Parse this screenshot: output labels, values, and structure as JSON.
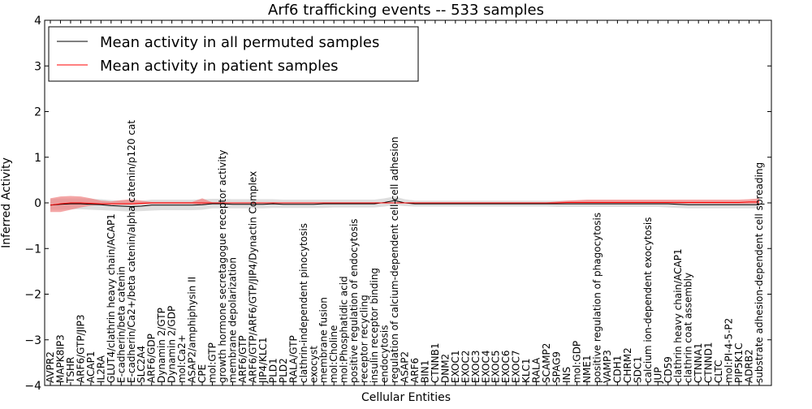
{
  "chart_data": {
    "type": "line",
    "title": "Arf6 trafficking events -- 533 samples",
    "xlabel": "Cellular Entities",
    "ylabel": "Inferred Activity",
    "ylim": [
      -4,
      4
    ],
    "yticks": [
      -4,
      -3,
      -2,
      -1,
      0,
      1,
      2,
      3,
      4
    ],
    "ytick_labels": [
      "−4",
      "−3",
      "−2",
      "−1",
      "0",
      "1",
      "2",
      "3",
      "4"
    ],
    "grid": false,
    "legend_position": "top-left",
    "categories": [
      "AVPR2",
      "MAPK8IP3",
      "TSHR",
      "ARF6/GTP/JIP3",
      "ACAP1",
      "IL2RA",
      "GLUT4/clathrin heavy chain/ACAP1",
      "E-cadherin/beta catenin",
      "E-cadherin/Ca2+/beta catenin/alpha catenin/p120 cat",
      "SLC2A4",
      "ARF6/GDP",
      "Dynamin 2/GTP",
      "Dynamin 2/GDP",
      "mol:Ca2+",
      "ASAP2/amphiphysin II",
      "CPE",
      "mol:GTP",
      "growth hormone secretagogue receptor activity",
      "membrane depolarization",
      "ARF6/GTP",
      "ARF6/GTP/ARF6/GTP/JIP4/Dynactin Complex",
      "JIP4/KLC1",
      "PLD1",
      "PLD2",
      "RALA/GTP",
      "clathrin-independent pinocytosis",
      "exocyst",
      "membrane fusion",
      "mol:Choline",
      "mol:Phosphatidic acid",
      "positive regulation of endocytosis",
      "receptor recycling",
      "insulin receptor binding",
      "endocytosis",
      "regulation of calcium-dependent cell-cell adhesion",
      "ASAP2",
      "ARF6",
      "BIN1",
      "CTNNB1",
      "DNM2",
      "EXOC1",
      "EXOC2",
      "EXOC3",
      "EXOC4",
      "EXOC5",
      "EXOC6",
      "EXOC7",
      "KLC1",
      "RALA",
      "SCAMP2",
      "SPAG9",
      "INS",
      "mol:GDP",
      "NME1",
      "positive regulation of phagocytosis",
      "VAMP3",
      "CDH1",
      "CHRM2",
      "SDC1",
      "calcium ion-dependent exocytosis",
      "JUP",
      "CD59",
      "clathrin heavy chain/ACAP1",
      "clathrin coat assembly",
      "CTNNA1",
      "CTNND1",
      "CLTC",
      "mol:PI-4-5-P2",
      "PIP5K1C",
      "ADRB2",
      "substrate adhesion-dependent cell spreading"
    ],
    "series": [
      {
        "name": "Mean activity in all permuted samples",
        "color": "#000000",
        "band_color": "#c8c8c8",
        "values": [
          -0.05,
          -0.03,
          -0.02,
          -0.02,
          -0.03,
          -0.04,
          -0.06,
          -0.07,
          -0.08,
          -0.07,
          -0.05,
          -0.05,
          -0.05,
          -0.05,
          -0.05,
          -0.04,
          -0.02,
          -0.02,
          -0.03,
          -0.03,
          -0.03,
          -0.03,
          -0.02,
          -0.03,
          -0.03,
          -0.03,
          -0.03,
          -0.02,
          -0.02,
          -0.02,
          -0.02,
          -0.02,
          -0.02,
          0.01,
          0.05,
          0.0,
          -0.02,
          -0.02,
          -0.02,
          -0.02,
          -0.02,
          -0.02,
          -0.02,
          -0.02,
          -0.02,
          -0.02,
          -0.02,
          -0.02,
          -0.02,
          -0.02,
          -0.02,
          -0.02,
          -0.02,
          -0.02,
          -0.02,
          -0.02,
          -0.02,
          -0.02,
          -0.02,
          -0.02,
          -0.02,
          -0.02,
          -0.03,
          -0.04,
          -0.04,
          -0.04,
          -0.04,
          -0.04,
          -0.04,
          -0.04,
          -0.04
        ],
        "band_lower": [
          -0.15,
          -0.15,
          -0.14,
          -0.14,
          -0.15,
          -0.16,
          -0.17,
          -0.18,
          -0.19,
          -0.18,
          -0.17,
          -0.16,
          -0.16,
          -0.16,
          -0.16,
          -0.15,
          -0.12,
          -0.12,
          -0.12,
          -0.12,
          -0.12,
          -0.12,
          -0.11,
          -0.11,
          -0.11,
          -0.11,
          -0.11,
          -0.11,
          -0.1,
          -0.1,
          -0.1,
          -0.1,
          -0.1,
          -0.08,
          -0.05,
          -0.07,
          -0.08,
          -0.08,
          -0.08,
          -0.08,
          -0.08,
          -0.08,
          -0.08,
          -0.08,
          -0.08,
          -0.08,
          -0.08,
          -0.08,
          -0.08,
          -0.08,
          -0.09,
          -0.09,
          -0.09,
          -0.09,
          -0.09,
          -0.09,
          -0.09,
          -0.09,
          -0.09,
          -0.09,
          -0.09,
          -0.1,
          -0.11,
          -0.12,
          -0.12,
          -0.12,
          -0.12,
          -0.12,
          -0.12,
          -0.12,
          -0.12
        ],
        "band_upper": [
          0.08,
          0.1,
          0.1,
          0.1,
          0.09,
          0.08,
          0.06,
          0.05,
          0.04,
          0.05,
          0.07,
          0.07,
          0.07,
          0.07,
          0.07,
          0.08,
          0.09,
          0.09,
          0.08,
          0.08,
          0.08,
          0.08,
          0.08,
          0.07,
          0.07,
          0.07,
          0.07,
          0.07,
          0.07,
          0.07,
          0.07,
          0.07,
          0.07,
          0.1,
          0.14,
          0.08,
          0.05,
          0.05,
          0.05,
          0.05,
          0.05,
          0.05,
          0.05,
          0.05,
          0.05,
          0.05,
          0.05,
          0.05,
          0.05,
          0.05,
          0.05,
          0.05,
          0.05,
          0.05,
          0.05,
          0.05,
          0.05,
          0.05,
          0.05,
          0.05,
          0.05,
          0.05,
          0.04,
          0.03,
          0.03,
          0.03,
          0.03,
          0.03,
          0.03,
          0.03,
          0.03
        ]
      },
      {
        "name": "Mean activity in patient samples",
        "color": "#ff0000",
        "band_color": "#f08080",
        "values": [
          -0.05,
          -0.02,
          0.0,
          0.0,
          -0.01,
          -0.02,
          -0.02,
          -0.02,
          -0.02,
          -0.01,
          0.0,
          0.0,
          0.0,
          0.0,
          0.0,
          0.0,
          0.0,
          0.0,
          0.0,
          0.0,
          0.0,
          0.0,
          0.0,
          0.0,
          0.0,
          0.0,
          0.0,
          0.0,
          0.0,
          0.0,
          0.0,
          0.0,
          0.0,
          0.0,
          0.0,
          0.0,
          0.0,
          0.0,
          0.0,
          0.0,
          0.0,
          0.0,
          0.0,
          0.0,
          0.0,
          0.0,
          0.0,
          0.0,
          0.0,
          0.0,
          0.0,
          0.01,
          0.01,
          0.01,
          0.01,
          0.01,
          0.01,
          0.01,
          0.01,
          0.01,
          0.01,
          0.01,
          0.01,
          0.01,
          0.01,
          0.01,
          0.01,
          0.01,
          0.01,
          0.02,
          0.02
        ],
        "band_lower": [
          -0.2,
          -0.2,
          -0.15,
          -0.1,
          -0.06,
          -0.04,
          -0.04,
          -0.04,
          -0.04,
          -0.03,
          -0.02,
          -0.02,
          -0.02,
          -0.02,
          -0.02,
          -0.04,
          -0.01,
          -0.01,
          -0.01,
          -0.01,
          -0.01,
          -0.01,
          -0.01,
          -0.01,
          -0.01,
          -0.01,
          -0.01,
          -0.01,
          -0.01,
          -0.01,
          -0.01,
          -0.01,
          -0.01,
          -0.01,
          -0.01,
          -0.01,
          -0.01,
          -0.01,
          -0.01,
          -0.01,
          -0.01,
          -0.01,
          -0.01,
          -0.01,
          -0.01,
          -0.01,
          -0.01,
          -0.01,
          -0.01,
          -0.01,
          -0.02,
          -0.02,
          -0.02,
          -0.02,
          -0.02,
          -0.02,
          -0.02,
          -0.02,
          -0.02,
          -0.02,
          -0.02,
          -0.02,
          -0.02,
          -0.02,
          -0.02,
          -0.02,
          -0.02,
          -0.02,
          -0.02,
          -0.02,
          -0.02
        ],
        "band_upper": [
          0.1,
          0.14,
          0.15,
          0.14,
          0.1,
          0.05,
          0.03,
          0.06,
          0.08,
          0.05,
          0.02,
          0.02,
          0.02,
          0.02,
          0.02,
          0.1,
          0.01,
          0.01,
          0.01,
          0.01,
          0.01,
          0.01,
          0.01,
          0.01,
          0.01,
          0.01,
          0.01,
          0.01,
          0.01,
          0.01,
          0.01,
          0.01,
          0.01,
          0.01,
          0.01,
          0.01,
          0.01,
          0.01,
          0.01,
          0.01,
          0.01,
          0.01,
          0.01,
          0.01,
          0.01,
          0.01,
          0.01,
          0.01,
          0.01,
          0.01,
          0.03,
          0.05,
          0.06,
          0.07,
          0.07,
          0.07,
          0.07,
          0.07,
          0.07,
          0.07,
          0.07,
          0.07,
          0.07,
          0.07,
          0.07,
          0.07,
          0.07,
          0.07,
          0.07,
          0.08,
          0.1
        ]
      }
    ]
  }
}
